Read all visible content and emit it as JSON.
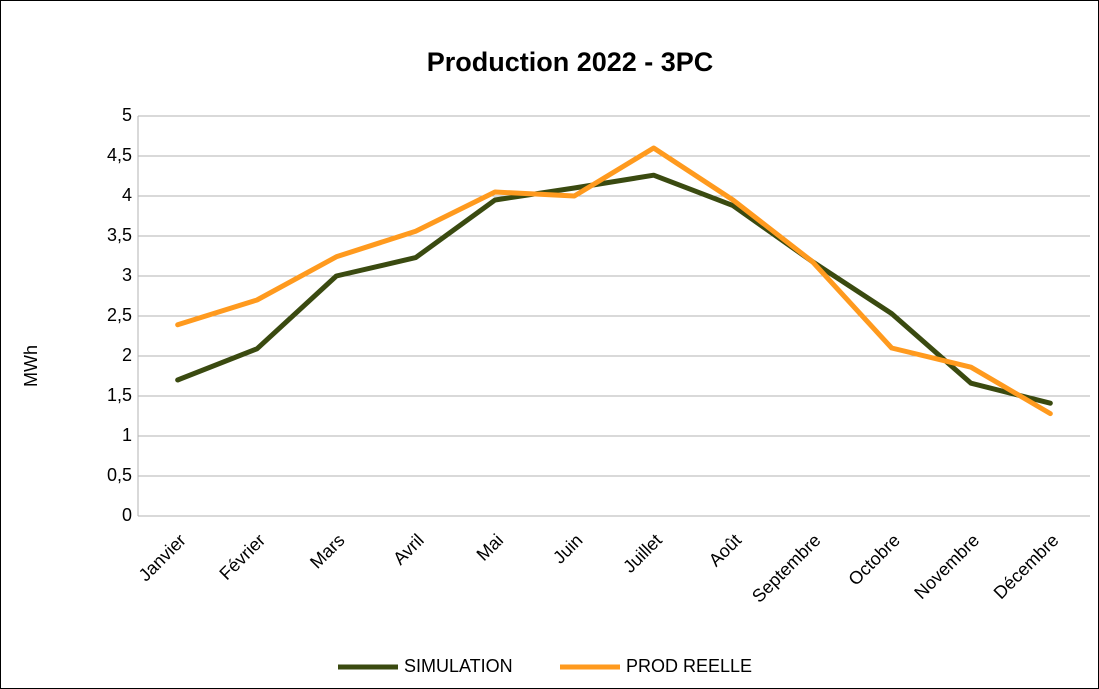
{
  "chart_data": {
    "type": "line",
    "title": "Production 2022 - 3PC",
    "y_label": "MWh",
    "categories": [
      "Janvier",
      "Février",
      "Mars",
      "Avril",
      "Mai",
      "Juin",
      "Juillet",
      "Août",
      "Septembre",
      "Octobre",
      "Novembre",
      "Décembre"
    ],
    "series": [
      {
        "name": "SIMULATION",
        "color": "#3a4a10",
        "values": [
          1.7,
          2.09,
          3.0,
          3.23,
          3.95,
          4.1,
          4.26,
          3.88,
          3.18,
          2.53,
          1.66,
          1.41
        ]
      },
      {
        "name": "PROD REELLE",
        "color": "#ff9a1e",
        "values": [
          2.39,
          2.7,
          3.24,
          3.56,
          4.05,
          4.0,
          4.6,
          3.95,
          3.18,
          2.1,
          1.86,
          1.28
        ]
      }
    ],
    "ylim": [
      0,
      5
    ],
    "yticks": [
      0,
      {
        "value": 0.5,
        "label": "0,5"
      },
      1,
      {
        "value": 1.5,
        "label": "1,5"
      },
      2,
      {
        "value": 2.5,
        "label": "2,5"
      },
      3,
      {
        "value": 3.5,
        "label": "3,5"
      },
      4,
      {
        "value": 4.5,
        "label": "4,5"
      },
      5
    ],
    "grid": true,
    "legend": "bottom"
  }
}
